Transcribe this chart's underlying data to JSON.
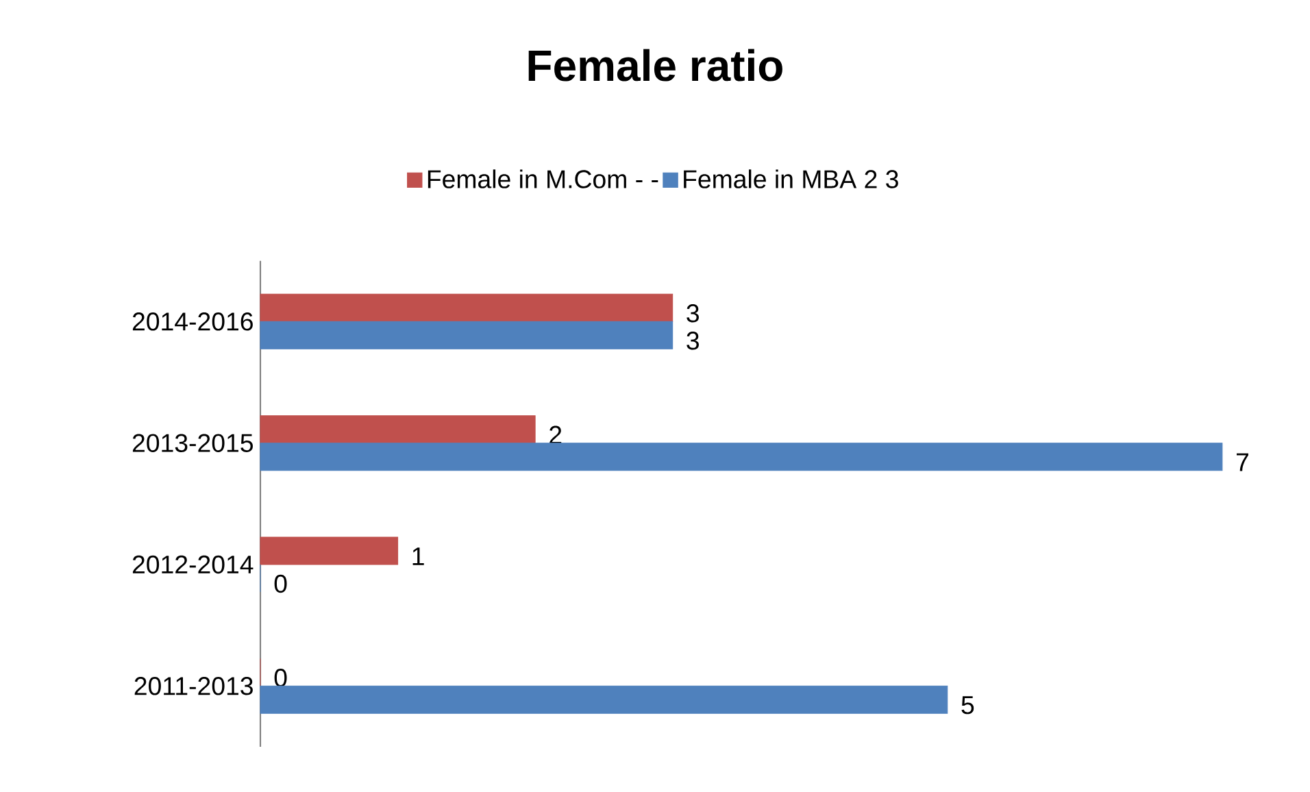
{
  "chart_data": {
    "type": "bar",
    "orientation": "horizontal",
    "title": "Female ratio",
    "categories": [
      "2014-2016",
      "2013-2015",
      "2012-2014",
      "2011-2013"
    ],
    "series": [
      {
        "name": "Female in M.Com - -",
        "color": "#c0504d",
        "values": [
          3,
          2,
          1,
          0
        ]
      },
      {
        "name": "Female in MBA 2 3",
        "color": "#4f81bd",
        "values": [
          3,
          7,
          0,
          5
        ]
      }
    ],
    "data_labels": true,
    "legend": "top"
  }
}
